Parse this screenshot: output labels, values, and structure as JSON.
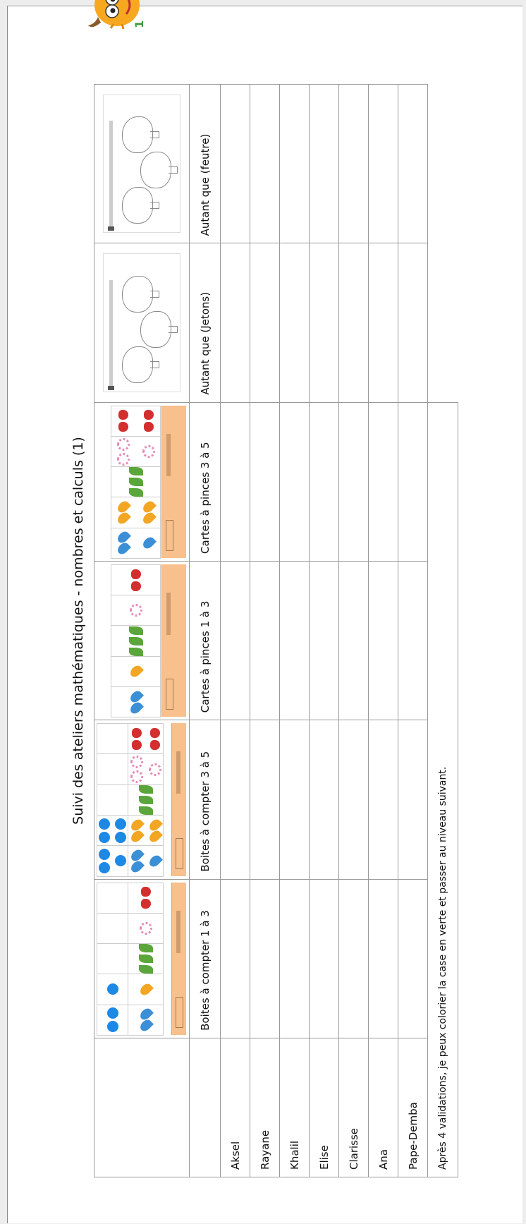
{
  "title": "Suivi des ateliers mathématiques - nombres et calculs (1)",
  "columns": [
    "Boites à compter 1 à 3",
    "Boites à compter 3 à 5",
    "Cartes à pinces 1 à 3",
    "Cartes à pinces 3 à 5",
    "Autant que (Jetons)",
    "Autant que (feutre)"
  ],
  "students": [
    "Aksel",
    "Rayane",
    "Khalil",
    "Elise",
    "Clarisse",
    "Ana",
    "Pape-Demba"
  ],
  "footer": "Après 4 validations, je peux colorier la case en verte et passer au niveau suivant.",
  "colors": {
    "dot_blue": "#1e88e5",
    "band_orange": "#f7c08c",
    "grid": "#999999",
    "monster_orange": "#f7a81f"
  },
  "icons": [
    "counting-box-thumbnail",
    "clip-card-thumbnail",
    "tree-worksheet-thumbnail",
    "monster-mascot-icon"
  ]
}
